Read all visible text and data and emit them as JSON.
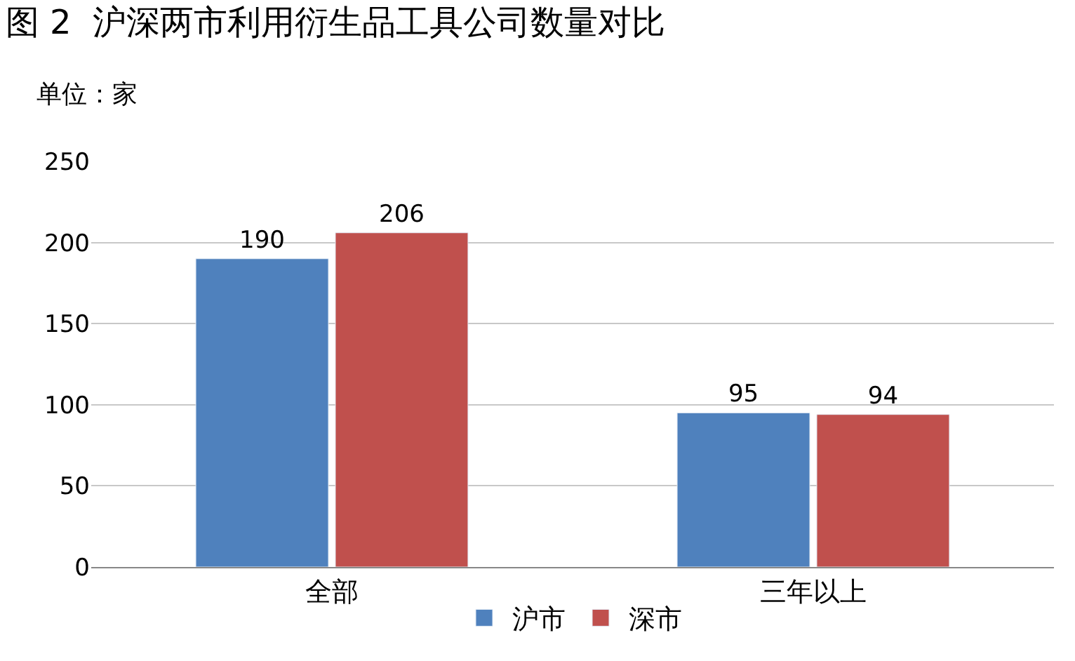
{
  "chart_data": {
    "type": "bar",
    "title": "图 2  沪深两市利用衍生品工具公司数量对比",
    "ylabel": "单位：家",
    "categories": [
      "全部",
      "三年以上"
    ],
    "series": [
      {
        "name": "沪市",
        "color": "#4f81bd",
        "values": [
          190,
          95
        ]
      },
      {
        "name": "深市",
        "color": "#c0504d",
        "values": [
          206,
          94
        ]
      }
    ],
    "ylim": [
      0,
      250
    ],
    "yticks": [
      0,
      50,
      100,
      150,
      200,
      250
    ],
    "grid": "y",
    "legend": "bottom",
    "data_labels": true
  }
}
